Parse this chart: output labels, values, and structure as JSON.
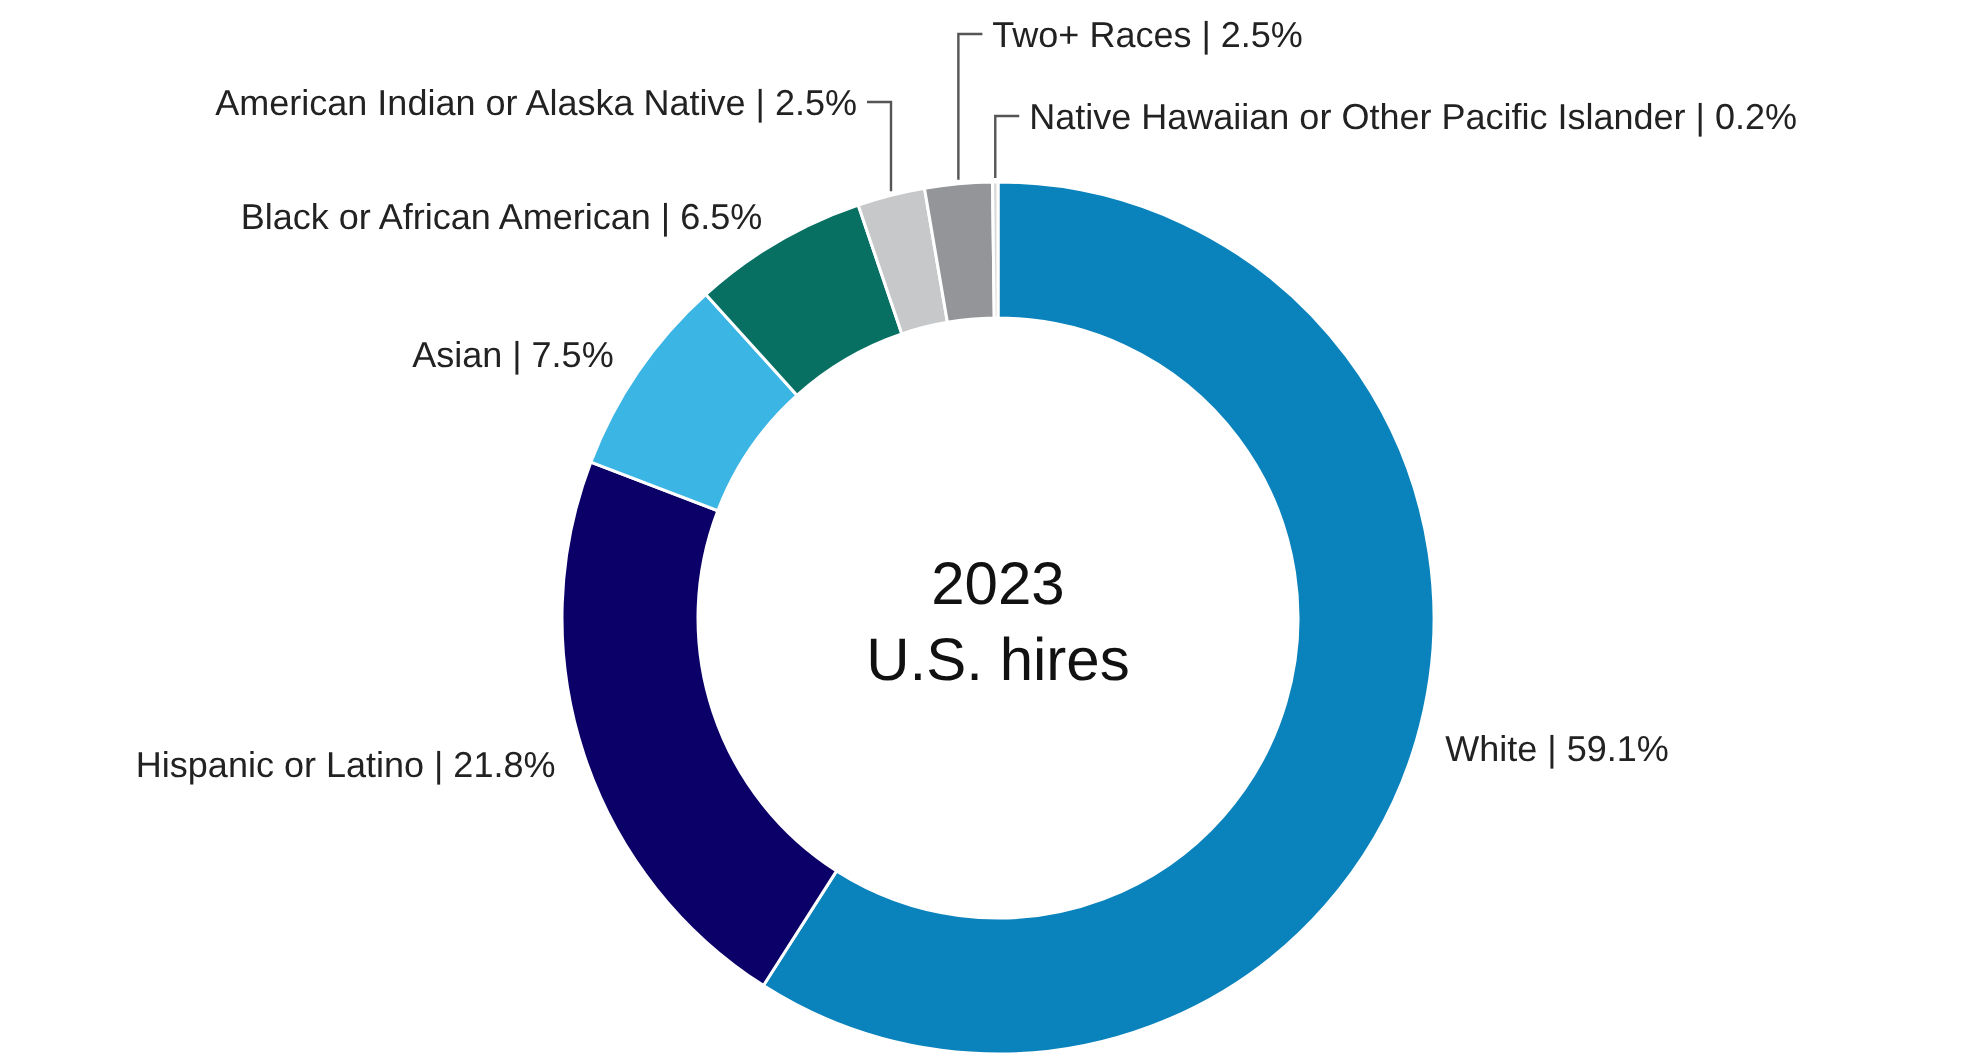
{
  "chart_data": {
    "type": "donut",
    "title": "2023",
    "subtitle": "U.S. hires",
    "categories": [
      "White",
      "Hispanic or Latino",
      "Asian",
      "Black or African American",
      "American Indian or Alaska Native",
      "Two+ Races",
      "Native Hawaiian or Other Pacific Islander"
    ],
    "values": [
      59.1,
      21.8,
      7.5,
      6.5,
      2.5,
      2.5,
      0.2
    ],
    "value_labels": [
      "| 59.1%",
      "| 21.8%",
      "| 7.5%",
      "| 6.5%",
      "| 2.5%",
      "| 2.5%",
      "| 0.2%"
    ],
    "colors": [
      "#0a83bd",
      "#0b0067",
      "#3bb5e3",
      "#077063",
      "#c7c8ca",
      "#939598",
      "#d9d9d9"
    ]
  }
}
